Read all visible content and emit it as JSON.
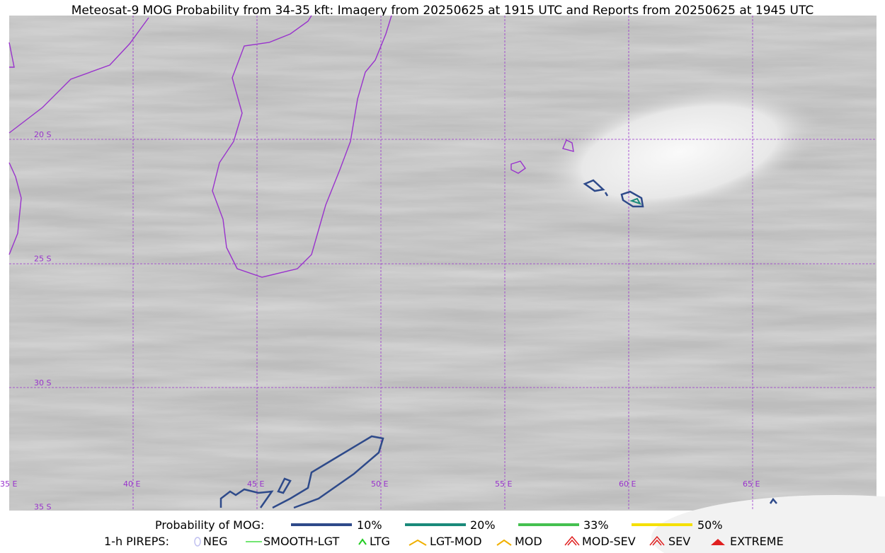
{
  "title": "Meteosat-9 MOG Probability from 34-35 kft: Imagery from 20250625 at 1915 UTC and Reports from 20250625 at 1945 UTC",
  "map": {
    "lat_labels": [
      "20 S",
      "25 S",
      "30 S",
      "35 S"
    ],
    "lon_labels": [
      "35 E",
      "40 E",
      "45 E",
      "50 E",
      "55 E",
      "60 E",
      "65 E"
    ]
  },
  "mog_legend": {
    "label": "Probability of MOG:",
    "items": [
      "10%",
      "20%",
      "33%",
      "50%"
    ]
  },
  "pirep_legend": {
    "label": "1-h PIREPS:",
    "items": [
      "NEG",
      "SMOOTH-LGT",
      "LTG",
      "LGT-MOD",
      "MOD",
      "MOD-SEV",
      "SEV",
      "EXTREME"
    ]
  }
}
